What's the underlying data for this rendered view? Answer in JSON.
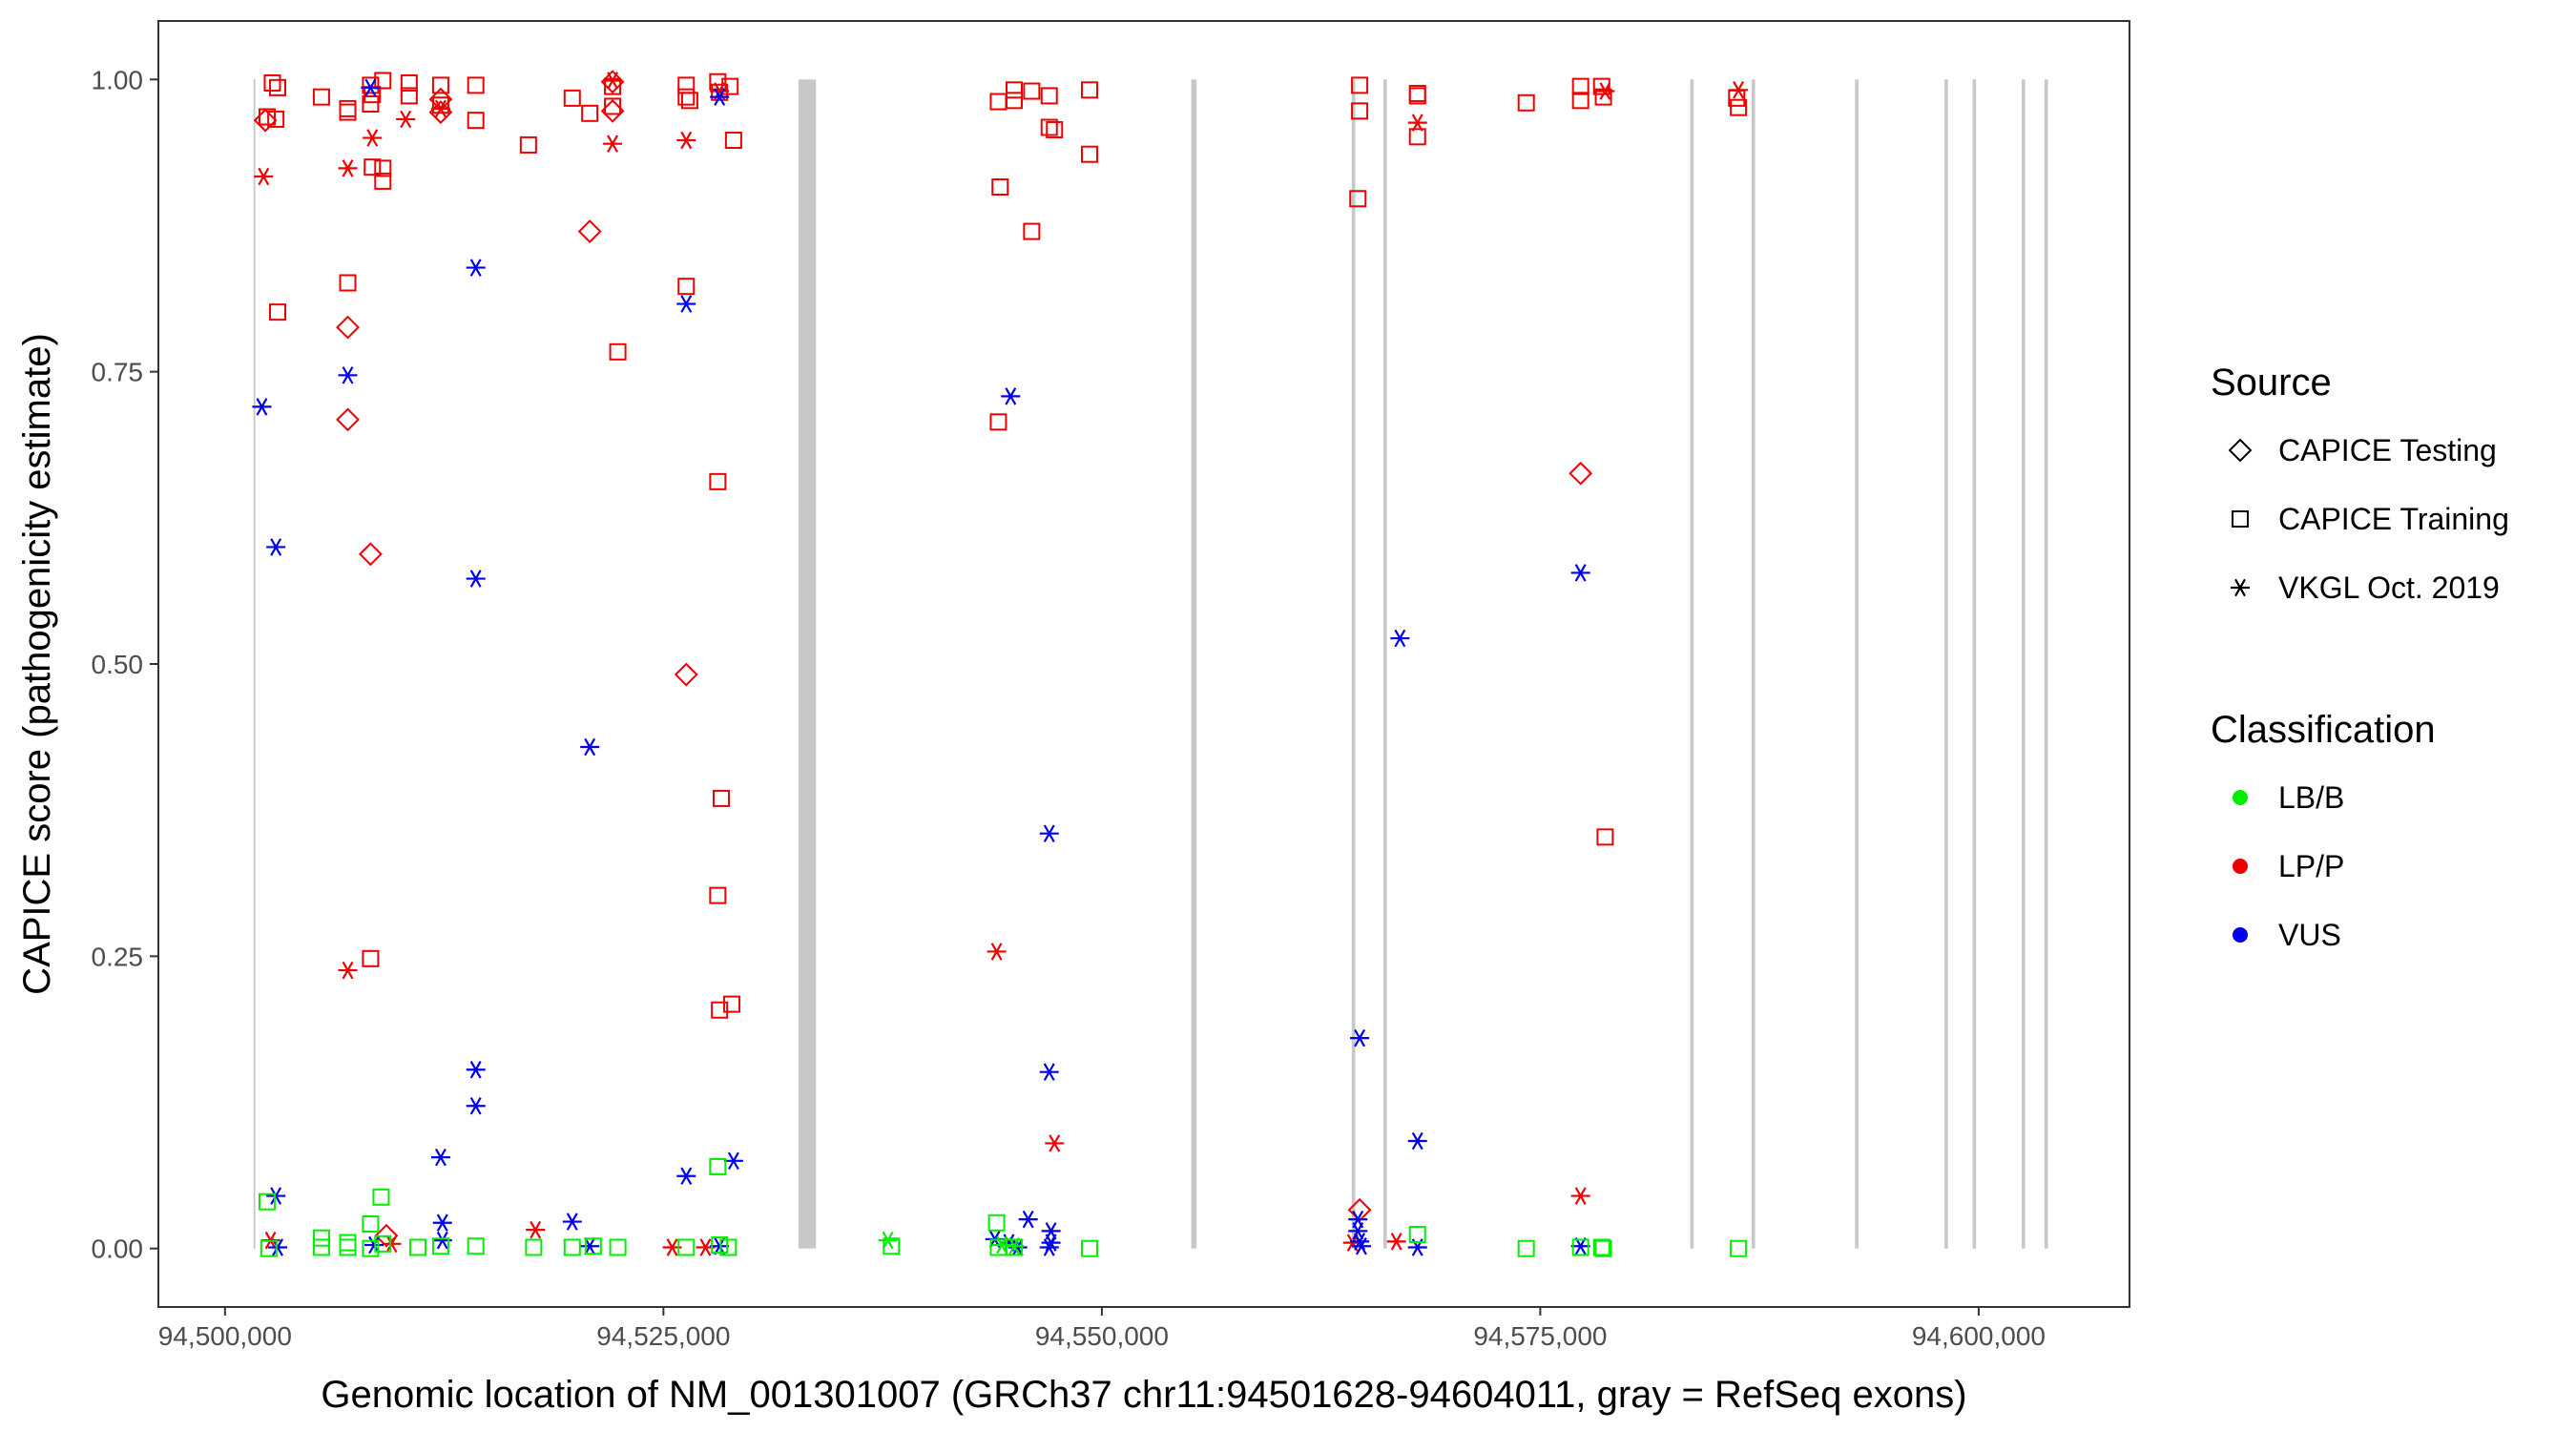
{
  "chart_data": {
    "type": "scatter",
    "title": "",
    "xlabel": "Genomic location of NM_001301007 (GRCh37 chr11:94501628-94604011, gray = RefSeq exons)",
    "ylabel": "CAPICE score (pathogenicity estimate)",
    "xlim": [
      94496200,
      94608600
    ],
    "ylim": [
      -0.05,
      1.05
    ],
    "x_ticks": [
      94500000,
      94525000,
      94550000,
      94575000,
      94600000
    ],
    "x_tick_labels": [
      "94,500,000",
      "94,525,000",
      "94,550,000",
      "94,575,000",
      "94,600,000"
    ],
    "y_ticks": [
      0,
      0.25,
      0.5,
      0.75,
      1
    ],
    "y_tick_labels": [
      "0.00",
      "0.25",
      "0.50",
      "0.75",
      "1.00"
    ],
    "grid": false,
    "exons": [
      [
        94501628,
        94501700
      ],
      [
        94532700,
        94533700
      ],
      [
        94555100,
        94555400
      ],
      [
        94564250,
        94564450
      ],
      [
        94566050,
        94566250
      ],
      [
        94583550,
        94583750
      ],
      [
        94587050,
        94587250
      ],
      [
        94592950,
        94593150
      ],
      [
        94598050,
        94598250
      ],
      [
        94599650,
        94599850
      ],
      [
        94602450,
        94602650
      ],
      [
        94603750,
        94603950
      ]
    ],
    "exon_color": "#c8c8c8",
    "legend": {
      "position": "right",
      "source_title": "Source",
      "source_items": [
        {
          "label": "CAPICE Testing",
          "shape": "diamond"
        },
        {
          "label": "CAPICE Training",
          "shape": "square"
        },
        {
          "label": "VKGL Oct. 2019",
          "shape": "asterisk"
        }
      ],
      "class_title": "Classification",
      "class_items": [
        {
          "label": "LB/B",
          "color": "#00ee00"
        },
        {
          "label": "LP/P",
          "color": "#ee0000"
        },
        {
          "label": "VUS",
          "color": "#0000ee"
        }
      ]
    },
    "series": [
      {
        "source": "CAPICE Training",
        "classification": "LP/P",
        "points": [
          [
            94502400,
            0.968
          ],
          [
            94502700,
            0.997
          ],
          [
            94503000,
            0.993
          ],
          [
            94502900,
            0.966
          ],
          [
            94503000,
            0.801
          ],
          [
            94505500,
            0.985
          ],
          [
            94507000,
            0.975
          ],
          [
            94507000,
            0.972
          ],
          [
            94507000,
            0.826
          ],
          [
            94508300,
            0.995
          ],
          [
            94508400,
            0.987
          ],
          [
            94508300,
            0.979
          ],
          [
            94508400,
            0.925
          ],
          [
            94508300,
            0.248
          ],
          [
            94509000,
            0.924
          ],
          [
            94509000,
            0.913
          ],
          [
            94509000,
            0.999
          ],
          [
            94510500,
            0.997
          ],
          [
            94510500,
            0.986
          ],
          [
            94512300,
            0.995
          ],
          [
            94512300,
            0.978
          ],
          [
            94514300,
            0.995
          ],
          [
            94514300,
            0.965
          ],
          [
            94517300,
            0.944
          ],
          [
            94519800,
            0.984
          ],
          [
            94520800,
            0.971
          ],
          [
            94522100,
            0.994
          ],
          [
            94522100,
            0.977
          ],
          [
            94522400,
            0.767
          ],
          [
            94526300,
            0.995
          ],
          [
            94526300,
            0.985
          ],
          [
            94526300,
            0.823
          ],
          [
            94526500,
            0.982
          ],
          [
            94528100,
            0.998
          ],
          [
            94528200,
            0.989
          ],
          [
            94528100,
            0.656
          ],
          [
            94528300,
            0.385
          ],
          [
            94528100,
            0.302
          ],
          [
            94528200,
            0.204
          ],
          [
            94528900,
            0.209
          ],
          [
            94528800,
            0.994
          ],
          [
            94529000,
            0.948
          ],
          [
            94544100,
            0.981
          ],
          [
            94544200,
            0.908
          ],
          [
            94544100,
            0.707
          ],
          [
            94545000,
            0.991
          ],
          [
            94545000,
            0.982
          ],
          [
            94546000,
            0.99
          ],
          [
            94546000,
            0.87
          ],
          [
            94547000,
            0.986
          ],
          [
            94547000,
            0.959
          ],
          [
            94547300,
            0.957
          ],
          [
            94549300,
            0.991
          ],
          [
            94549300,
            0.936
          ],
          [
            94564700,
            0.995
          ],
          [
            94564700,
            0.973
          ],
          [
            94564600,
            0.898
          ],
          [
            94568000,
            0.988
          ],
          [
            94568000,
            0.986
          ],
          [
            94568000,
            0.951
          ],
          [
            94574200,
            0.98
          ],
          [
            94577300,
            0.994
          ],
          [
            94577300,
            0.982
          ],
          [
            94578500,
            0.994
          ],
          [
            94578600,
            0.985
          ],
          [
            94578700,
            0.352
          ],
          [
            94586200,
            0.984
          ],
          [
            94586300,
            0.976
          ]
        ]
      },
      {
        "source": "CAPICE Testing",
        "classification": "LP/P",
        "points": [
          [
            94502300,
            0.965
          ],
          [
            94507000,
            0.788
          ],
          [
            94507000,
            0.709
          ],
          [
            94508300,
            0.594
          ],
          [
            94509200,
            0.011
          ],
          [
            94512300,
            0.983
          ],
          [
            94512300,
            0.972
          ],
          [
            94520800,
            0.87
          ],
          [
            94522100,
            0.998
          ],
          [
            94522100,
            0.973
          ],
          [
            94526300,
            0.491
          ],
          [
            94577300,
            0.663
          ],
          [
            94564700,
            0.033
          ]
        ]
      },
      {
        "source": "VKGL Oct. 2019",
        "classification": "LP/P",
        "points": [
          [
            94502200,
            0.917
          ],
          [
            94502600,
            0.007
          ],
          [
            94507000,
            0.924
          ],
          [
            94507000,
            0.238
          ],
          [
            94508400,
            0.95
          ],
          [
            94509500,
            0.004
          ],
          [
            94510300,
            0.966
          ],
          [
            94512300,
            0.975
          ],
          [
            94517700,
            0.016
          ],
          [
            94522100,
            0.945
          ],
          [
            94522100,
            0.999
          ],
          [
            94525500,
            0.001
          ],
          [
            94526300,
            0.948
          ],
          [
            94527400,
            0.001
          ],
          [
            94528200,
            0.99
          ],
          [
            94544000,
            0.254
          ],
          [
            94547300,
            0.09
          ],
          [
            94564300,
            0.005
          ],
          [
            94566800,
            0.006
          ],
          [
            94568000,
            0.963
          ],
          [
            94577300,
            0.045
          ],
          [
            94578700,
            0.99
          ],
          [
            94586300,
            0.991
          ]
        ]
      },
      {
        "source": "VKGL Oct. 2019",
        "classification": "VUS",
        "points": [
          [
            94502100,
            0.72
          ],
          [
            94502900,
            0.6
          ],
          [
            94502900,
            0.045
          ],
          [
            94503000,
            0.001
          ],
          [
            94507000,
            0.747
          ],
          [
            94508300,
            0.993
          ],
          [
            94508500,
            0.003
          ],
          [
            94512300,
            0.078
          ],
          [
            94512400,
            0.022
          ],
          [
            94512400,
            0.007
          ],
          [
            94514300,
            0.839
          ],
          [
            94514300,
            0.573
          ],
          [
            94514300,
            0.153
          ],
          [
            94514300,
            0.122
          ],
          [
            94519800,
            0.023
          ],
          [
            94520800,
            0.429
          ],
          [
            94520800,
            0.002
          ],
          [
            94526300,
            0.808
          ],
          [
            94526300,
            0.062
          ],
          [
            94528200,
            0.985
          ],
          [
            94528200,
            0.002
          ],
          [
            94529000,
            0.075
          ],
          [
            94543900,
            0.008
          ],
          [
            94544800,
            0.729
          ],
          [
            94544700,
            0.005
          ],
          [
            94545200,
            0.001
          ],
          [
            94545800,
            0.025
          ],
          [
            94547000,
            0.355
          ],
          [
            94547000,
            0.151
          ],
          [
            94547100,
            0.015
          ],
          [
            94547100,
            0.005
          ],
          [
            94547000,
            0.001
          ],
          [
            94564700,
            0.18
          ],
          [
            94564600,
            0.025
          ],
          [
            94564600,
            0.015
          ],
          [
            94564700,
            0.006
          ],
          [
            94564800,
            0.002
          ],
          [
            94567000,
            0.522
          ],
          [
            94568000,
            0.092
          ],
          [
            94568000,
            0.001
          ],
          [
            94577300,
            0.578
          ],
          [
            94577300,
            0.002
          ]
        ]
      },
      {
        "source": "CAPICE Training",
        "classification": "LB/B",
        "points": [
          [
            94502400,
            0.04
          ],
          [
            94502500,
            0.0
          ],
          [
            94505500,
            0.009
          ],
          [
            94505500,
            0.001
          ],
          [
            94507000,
            0.005
          ],
          [
            94507000,
            0.001
          ],
          [
            94508300,
            0.021
          ],
          [
            94508300,
            0.0
          ],
          [
            94508900,
            0.044
          ],
          [
            94509000,
            0.004
          ],
          [
            94511000,
            0.001
          ],
          [
            94512300,
            0.002
          ],
          [
            94514300,
            0.002
          ],
          [
            94517600,
            0.001
          ],
          [
            94519800,
            0.001
          ],
          [
            94521000,
            0.002
          ],
          [
            94522400,
            0.001
          ],
          [
            94526300,
            0.001
          ],
          [
            94528100,
            0.07
          ],
          [
            94528200,
            0.003
          ],
          [
            94528700,
            0.001
          ],
          [
            94538000,
            0.002
          ],
          [
            94544000,
            0.022
          ],
          [
            94544100,
            0.001
          ],
          [
            94545000,
            0.001
          ],
          [
            94549300,
            0.0
          ],
          [
            94568000,
            0.012
          ],
          [
            94574200,
            0.0
          ],
          [
            94577300,
            0.001
          ],
          [
            94578500,
            0.001
          ],
          [
            94578600,
            0.0
          ],
          [
            94586300,
            0.0
          ]
        ]
      },
      {
        "source": "VKGL Oct. 2019",
        "classification": "LB/B",
        "points": [
          [
            94537800,
            0.007
          ],
          [
            94544300,
            0.003
          ],
          [
            94545000,
            0.002
          ]
        ]
      }
    ]
  }
}
